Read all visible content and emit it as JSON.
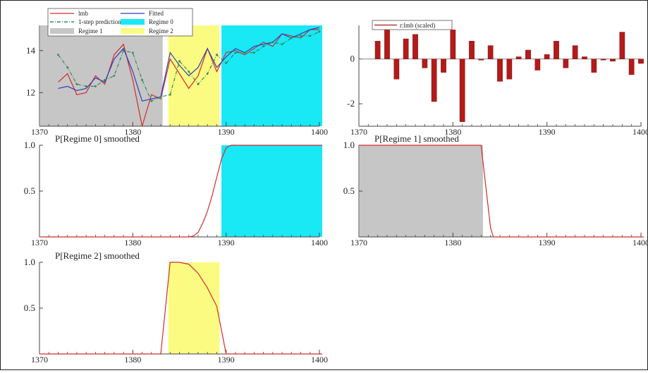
{
  "chart_data": [
    {
      "type": "line",
      "xlim": [
        1370,
        1400
      ],
      "ylim": [
        10.4,
        15.2
      ],
      "x_ticks": [
        1370,
        1380,
        1390,
        1400
      ],
      "x_tick_labels": [
        "1370",
        "1380",
        "1390",
        "1400"
      ],
      "y_ticks": [
        12,
        14
      ],
      "y_tick_labels": [
        "12",
        "14"
      ],
      "legend_position": "top-left",
      "legend": [
        {
          "label": "lmb",
          "style": "line",
          "color": "#d62a2a"
        },
        {
          "label": "Fitted",
          "style": "line",
          "color": "#2b3fbf"
        },
        {
          "label": "1-step prediction",
          "style": "dashdot",
          "color": "#2e8b57"
        },
        {
          "label": "Regime 0",
          "style": "fill",
          "color": "#19e8f5"
        },
        {
          "label": "Regime 1",
          "style": "fill",
          "color": "#c6c6c6"
        },
        {
          "label": "Regime 2",
          "style": "fill",
          "color": "#fbfb82"
        }
      ],
      "regions": [
        {
          "name": "Regime 1",
          "from": 1370,
          "to": 1383.2,
          "color": "#c6c6c6"
        },
        {
          "name": "Regime 2",
          "from": 1383.8,
          "to": 1389.3,
          "color": "#fbfb82"
        },
        {
          "name": "Regime 0",
          "from": 1389.5,
          "to": 1400.3,
          "color": "#19e8f5"
        }
      ],
      "x": [
        1372,
        1373,
        1374,
        1375,
        1376,
        1377,
        1378,
        1379,
        1380,
        1381,
        1382,
        1383,
        1384,
        1385,
        1386,
        1387,
        1388,
        1389,
        1390,
        1391,
        1392,
        1393,
        1394,
        1395,
        1396,
        1397,
        1398,
        1399,
        1400
      ],
      "series": [
        {
          "name": "lmb",
          "color": "#d62a2a",
          "values": [
            12.5,
            12.9,
            11.9,
            12.0,
            12.8,
            12.4,
            13.8,
            14.3,
            12.6,
            10.4,
            11.9,
            11.7,
            13.6,
            12.9,
            12.2,
            12.8,
            14.1,
            13.0,
            13.9,
            14.0,
            13.8,
            14.1,
            14.4,
            14.2,
            14.8,
            14.7,
            14.6,
            15.0,
            15.0
          ]
        },
        {
          "name": "Fitted",
          "color": "#2b3fbf",
          "values": [
            12.2,
            12.3,
            12.1,
            12.2,
            12.7,
            12.5,
            13.6,
            14.1,
            13.0,
            11.6,
            11.7,
            11.8,
            13.9,
            13.3,
            12.8,
            13.2,
            14.1,
            13.2,
            13.7,
            14.1,
            13.9,
            14.2,
            14.3,
            14.4,
            14.8,
            14.6,
            14.8,
            15.0,
            15.1
          ]
        },
        {
          "name": "1-step prediction",
          "color": "#2e8b57",
          "values": [
            13.8,
            13.2,
            12.4,
            12.3,
            12.3,
            12.6,
            12.8,
            14.0,
            13.9,
            12.6,
            11.6,
            11.8,
            11.9,
            13.5,
            13.0,
            12.4,
            12.9,
            13.8,
            13.4,
            13.9,
            13.9,
            13.9,
            14.2,
            14.4,
            14.3,
            14.6,
            14.7,
            14.7,
            14.9
          ]
        }
      ]
    },
    {
      "type": "bar",
      "xlim": [
        1370,
        1400
      ],
      "ylim": [
        -3,
        1.5
      ],
      "x_ticks": [
        1370,
        1380,
        1390,
        1400
      ],
      "x_tick_labels": [
        "1370",
        "1380",
        "1390",
        "1400"
      ],
      "y_ticks": [
        -2,
        0
      ],
      "y_tick_labels": [
        "-2",
        "0"
      ],
      "legend_position": "top-left",
      "legend": [
        {
          "label": "r:lmb (scaled)",
          "style": "line",
          "color": "#b31a1a"
        }
      ],
      "series": [
        {
          "name": "r:lmb (scaled)",
          "color": "#b31a1a",
          "x": [
            1372,
            1373,
            1374,
            1375,
            1376,
            1377,
            1378,
            1379,
            1380,
            1381,
            1382,
            1383,
            1384,
            1385,
            1386,
            1387,
            1388,
            1389,
            1390,
            1391,
            1392,
            1393,
            1394,
            1395,
            1396,
            1397,
            1398,
            1399,
            1400
          ],
          "values": [
            0.8,
            1.3,
            -0.9,
            0.9,
            1.1,
            -0.4,
            -1.9,
            -0.6,
            1.3,
            -2.8,
            0.8,
            -0.05,
            0.6,
            -1.0,
            -0.9,
            0.1,
            0.4,
            -0.5,
            0.2,
            0.8,
            -0.4,
            0.6,
            0.1,
            -0.6,
            -0.05,
            -0.1,
            1.2,
            -0.7,
            -0.2
          ]
        }
      ]
    },
    {
      "type": "area",
      "title": "P[Regime 0] smoothed",
      "xlim": [
        1370,
        1400
      ],
      "ylim": [
        0,
        1
      ],
      "x_ticks": [
        1370,
        1380,
        1390,
        1400
      ],
      "x_tick_labels": [
        "1370",
        "1380",
        "1390",
        "1400"
      ],
      "y_ticks": [
        0.5,
        1.0
      ],
      "y_tick_labels": [
        "0.5",
        "1.0"
      ],
      "regions": [
        {
          "from": 1389.5,
          "to": 1400.3,
          "color": "#19e8f5"
        }
      ],
      "x": [
        1370,
        1386,
        1386.5,
        1387,
        1387.5,
        1388,
        1388.5,
        1389,
        1389.5,
        1390,
        1390.5,
        1400.3
      ],
      "series": [
        {
          "color": "#d62a2a",
          "values": [
            0,
            0,
            0.01,
            0.05,
            0.15,
            0.28,
            0.45,
            0.65,
            0.85,
            0.97,
            1,
            1
          ]
        }
      ]
    },
    {
      "type": "area",
      "title": "P[Regime 1] smoothed",
      "xlim": [
        1370,
        1400
      ],
      "ylim": [
        0,
        1
      ],
      "x_ticks": [
        1370,
        1380,
        1390,
        1400
      ],
      "x_tick_labels": [
        "1370",
        "1380",
        "1390",
        "1400"
      ],
      "y_ticks": [
        0.5,
        1.0
      ],
      "y_tick_labels": [
        "0.5",
        "1.0"
      ],
      "regions": [
        {
          "from": 1370,
          "to": 1383.2,
          "color": "#c6c6c6"
        }
      ],
      "x": [
        1370,
        1383,
        1384,
        1384.3,
        1400.3
      ],
      "series": [
        {
          "color": "#d62a2a",
          "values": [
            1,
            1,
            0.1,
            0,
            0
          ]
        }
      ]
    },
    {
      "type": "area",
      "title": "P[Regime 2] smoothed",
      "xlim": [
        1370,
        1400
      ],
      "ylim": [
        0,
        1
      ],
      "x_ticks": [
        1370,
        1380,
        1390,
        1400
      ],
      "x_tick_labels": [
        "1370",
        "1380",
        "1390",
        "1400"
      ],
      "y_ticks": [
        0.5,
        1.0
      ],
      "y_tick_labels": [
        "0.5",
        "1.0"
      ],
      "regions": [
        {
          "from": 1383.8,
          "to": 1389.3,
          "color": "#fbfb82"
        }
      ],
      "x": [
        1370,
        1383,
        1384,
        1385,
        1386,
        1387,
        1388,
        1389,
        1390,
        1400.3
      ],
      "series": [
        {
          "color": "#d62a2a",
          "values": [
            0,
            0,
            1,
            1,
            0.98,
            0.88,
            0.72,
            0.52,
            0,
            0
          ]
        }
      ]
    }
  ]
}
